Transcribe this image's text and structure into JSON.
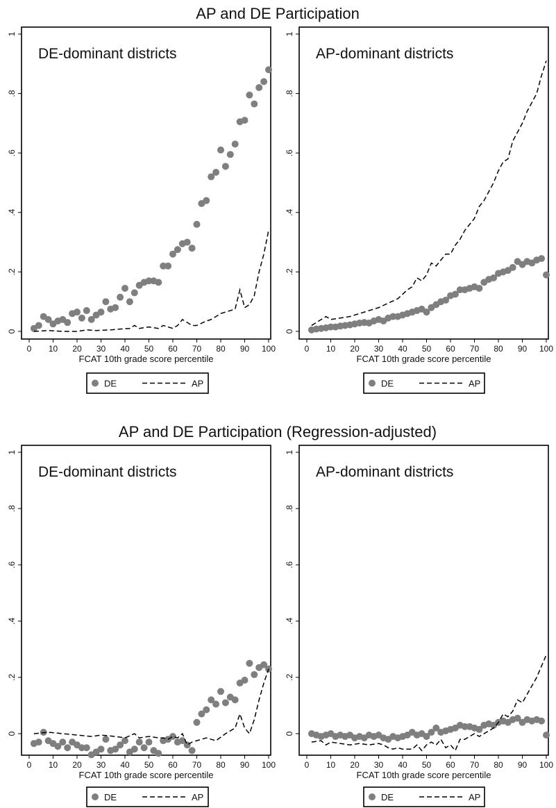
{
  "figure": {
    "sections": [
      {
        "title": "AP and DE Participation",
        "legend": {
          "items": [
            {
              "label": "DE",
              "marker": "dot"
            },
            {
              "label": "AP",
              "marker": "dash"
            }
          ]
        }
      },
      {
        "title": "AP and DE Participation (Regression-adjusted)",
        "legend": {
          "items": [
            {
              "label": "DE",
              "marker": "dot"
            },
            {
              "label": "AP",
              "marker": "dash"
            }
          ]
        }
      }
    ]
  },
  "colors": {
    "de_marker": "#7f7f7f",
    "ap_line": "#000000",
    "frame": "#000000"
  },
  "chart_data": [
    {
      "type": "scatter",
      "title": "DE-dominant districts",
      "xlabel": "FCAT 10th grade score percentile",
      "ylabel": "",
      "xlim": [
        0,
        100
      ],
      "ylim": [
        0,
        1
      ],
      "xticks": [
        "0",
        "10",
        "20",
        "30",
        "40",
        "50",
        "60",
        "70",
        "80",
        "90",
        "100"
      ],
      "yticks": [
        "0",
        ".2",
        ".4",
        ".6",
        ".8",
        "1"
      ],
      "series": [
        {
          "name": "DE",
          "style": "dot",
          "x": [
            2,
            4,
            6,
            8,
            10,
            12,
            14,
            16,
            18,
            20,
            22,
            24,
            26,
            28,
            30,
            32,
            34,
            36,
            38,
            40,
            42,
            44,
            46,
            48,
            50,
            52,
            54,
            56,
            58,
            60,
            62,
            64,
            66,
            68,
            70,
            72,
            74,
            76,
            78,
            80,
            82,
            84,
            86,
            88,
            90,
            92,
            94,
            96,
            98,
            100
          ],
          "y": [
            0.01,
            0.02,
            0.05,
            0.04,
            0.025,
            0.035,
            0.04,
            0.03,
            0.06,
            0.065,
            0.045,
            0.07,
            0.04,
            0.055,
            0.065,
            0.1,
            0.075,
            0.08,
            0.115,
            0.145,
            0.1,
            0.13,
            0.155,
            0.165,
            0.17,
            0.17,
            0.165,
            0.22,
            0.22,
            0.26,
            0.275,
            0.295,
            0.3,
            0.28,
            0.36,
            0.43,
            0.44,
            0.52,
            0.535,
            0.61,
            0.555,
            0.595,
            0.63,
            0.705,
            0.71,
            0.795,
            0.765,
            0.82,
            0.84,
            0.88
          ]
        },
        {
          "name": "AP",
          "style": "dash",
          "x": [
            2,
            8,
            14,
            20,
            24,
            28,
            34,
            38,
            42,
            44,
            46,
            50,
            54,
            56,
            58,
            60,
            62,
            64,
            66,
            68,
            70,
            74,
            76,
            78,
            80,
            84,
            86,
            88,
            90,
            92,
            94,
            96,
            98,
            100
          ],
          "y": [
            0.0,
            0.003,
            0.0,
            0.0,
            0.005,
            0.003,
            0.005,
            0.008,
            0.01,
            0.02,
            0.01,
            0.015,
            0.01,
            0.02,
            0.015,
            0.01,
            0.02,
            0.04,
            0.03,
            0.02,
            0.02,
            0.035,
            0.04,
            0.05,
            0.06,
            0.07,
            0.075,
            0.14,
            0.08,
            0.09,
            0.12,
            0.2,
            0.26,
            0.34
          ]
        }
      ]
    },
    {
      "type": "scatter",
      "title": "AP-dominant districts",
      "xlabel": "FCAT 10th grade score percentile",
      "ylabel": "",
      "xlim": [
        0,
        100
      ],
      "ylim": [
        0,
        1
      ],
      "xticks": [
        "0",
        "10",
        "20",
        "30",
        "40",
        "50",
        "60",
        "70",
        "80",
        "90",
        "100"
      ],
      "yticks": [
        "0",
        ".2",
        ".4",
        ".6",
        ".8",
        "1"
      ],
      "series": [
        {
          "name": "DE",
          "style": "dot",
          "x": [
            2,
            4,
            6,
            8,
            10,
            12,
            14,
            16,
            18,
            20,
            22,
            24,
            26,
            28,
            30,
            32,
            34,
            36,
            38,
            40,
            42,
            44,
            46,
            48,
            50,
            52,
            54,
            56,
            58,
            60,
            62,
            64,
            66,
            68,
            70,
            72,
            74,
            76,
            78,
            80,
            82,
            84,
            86,
            88,
            90,
            92,
            94,
            96,
            98,
            100
          ],
          "y": [
            0.005,
            0.008,
            0.01,
            0.012,
            0.015,
            0.015,
            0.018,
            0.02,
            0.022,
            0.025,
            0.028,
            0.03,
            0.028,
            0.035,
            0.04,
            0.035,
            0.045,
            0.05,
            0.05,
            0.055,
            0.06,
            0.065,
            0.07,
            0.075,
            0.065,
            0.08,
            0.09,
            0.1,
            0.105,
            0.12,
            0.125,
            0.14,
            0.14,
            0.145,
            0.15,
            0.145,
            0.165,
            0.175,
            0.18,
            0.195,
            0.2,
            0.205,
            0.215,
            0.235,
            0.225,
            0.235,
            0.23,
            0.24,
            0.245,
            0.19
          ]
        },
        {
          "name": "AP",
          "style": "dash",
          "x": [
            2,
            6,
            8,
            10,
            14,
            18,
            22,
            26,
            30,
            34,
            38,
            42,
            44,
            46,
            48,
            50,
            52,
            54,
            56,
            58,
            60,
            62,
            64,
            66,
            68,
            70,
            72,
            74,
            76,
            78,
            80,
            82,
            84,
            86,
            88,
            90,
            92,
            94,
            96,
            98,
            100
          ],
          "y": [
            0.02,
            0.04,
            0.05,
            0.04,
            0.045,
            0.05,
            0.06,
            0.07,
            0.08,
            0.095,
            0.11,
            0.14,
            0.15,
            0.18,
            0.17,
            0.19,
            0.23,
            0.22,
            0.24,
            0.26,
            0.26,
            0.29,
            0.31,
            0.34,
            0.36,
            0.38,
            0.42,
            0.44,
            0.47,
            0.5,
            0.54,
            0.57,
            0.58,
            0.64,
            0.67,
            0.7,
            0.74,
            0.77,
            0.8,
            0.86,
            0.91
          ]
        }
      ]
    },
    {
      "type": "scatter",
      "title": "DE-dominant districts",
      "xlabel": "FCAT 10th grade score percentile",
      "ylabel": "",
      "xlim": [
        0,
        100
      ],
      "ylim": [
        -0.1,
        1
      ],
      "xticks": [
        "0",
        "10",
        "20",
        "30",
        "40",
        "50",
        "60",
        "70",
        "80",
        "90",
        "100"
      ],
      "yticks": [
        "0",
        ".2",
        ".4",
        ".6",
        ".8",
        "1"
      ],
      "series": [
        {
          "name": "DE",
          "style": "dot",
          "x": [
            2,
            4,
            6,
            8,
            10,
            12,
            14,
            16,
            18,
            20,
            22,
            24,
            26,
            28,
            30,
            32,
            34,
            36,
            38,
            40,
            42,
            44,
            46,
            48,
            50,
            52,
            54,
            56,
            58,
            60,
            62,
            64,
            66,
            68,
            70,
            72,
            74,
            76,
            78,
            80,
            82,
            84,
            86,
            88,
            90,
            92,
            94,
            96,
            98,
            100
          ],
          "y": [
            -0.035,
            -0.03,
            0.005,
            -0.025,
            -0.035,
            -0.045,
            -0.03,
            -0.05,
            -0.03,
            -0.04,
            -0.05,
            -0.05,
            -0.075,
            -0.065,
            -0.055,
            -0.02,
            -0.06,
            -0.055,
            -0.04,
            -0.025,
            -0.065,
            -0.055,
            -0.03,
            -0.05,
            -0.03,
            -0.06,
            -0.07,
            -0.025,
            -0.02,
            -0.01,
            -0.03,
            -0.025,
            -0.04,
            -0.06,
            0.04,
            0.07,
            0.085,
            0.12,
            0.105,
            0.15,
            0.11,
            0.13,
            0.12,
            0.18,
            0.19,
            0.25,
            0.21,
            0.235,
            0.245,
            0.23
          ]
        },
        {
          "name": "AP",
          "style": "dash",
          "x": [
            2,
            8,
            14,
            20,
            26,
            30,
            36,
            40,
            44,
            46,
            50,
            54,
            56,
            58,
            60,
            62,
            64,
            66,
            68,
            70,
            74,
            78,
            82,
            86,
            88,
            90,
            92,
            94,
            96,
            98,
            100
          ],
          "y": [
            0.0,
            0.005,
            0.0,
            -0.005,
            -0.01,
            -0.005,
            -0.01,
            -0.015,
            0.0,
            -0.015,
            -0.01,
            -0.015,
            -0.015,
            -0.02,
            -0.01,
            -0.015,
            0.0,
            -0.04,
            -0.03,
            -0.025,
            -0.015,
            -0.025,
            0.0,
            0.02,
            0.07,
            0.02,
            0.0,
            0.05,
            0.12,
            0.18,
            0.23
          ]
        }
      ]
    },
    {
      "type": "scatter",
      "title": "AP-dominant districts",
      "xlabel": "FCAT 10th grade score percentile",
      "ylabel": "",
      "xlim": [
        0,
        100
      ],
      "ylim": [
        -0.1,
        1
      ],
      "xticks": [
        "0",
        "10",
        "20",
        "30",
        "40",
        "50",
        "60",
        "70",
        "80",
        "90",
        "100"
      ],
      "yticks": [
        "0",
        ".2",
        ".4",
        ".6",
        ".8",
        "1"
      ],
      "series": [
        {
          "name": "DE",
          "style": "dot",
          "x": [
            2,
            4,
            6,
            8,
            10,
            12,
            14,
            16,
            18,
            20,
            22,
            24,
            26,
            28,
            30,
            32,
            34,
            36,
            38,
            40,
            42,
            44,
            46,
            48,
            50,
            52,
            54,
            56,
            58,
            60,
            62,
            64,
            66,
            68,
            70,
            72,
            74,
            76,
            78,
            80,
            82,
            84,
            86,
            88,
            90,
            92,
            94,
            96,
            98,
            100
          ],
          "y": [
            0.0,
            -0.005,
            -0.01,
            -0.005,
            0.0,
            -0.01,
            -0.005,
            -0.01,
            -0.005,
            -0.015,
            -0.01,
            -0.015,
            -0.005,
            -0.01,
            -0.005,
            -0.015,
            -0.02,
            -0.01,
            -0.015,
            -0.01,
            -0.005,
            0.005,
            -0.005,
            0.0,
            -0.01,
            0.005,
            0.02,
            0.005,
            0.01,
            0.015,
            0.02,
            0.03,
            0.025,
            0.025,
            0.02,
            0.015,
            0.03,
            0.035,
            0.03,
            0.04,
            0.045,
            0.04,
            0.05,
            0.055,
            0.04,
            0.05,
            0.045,
            0.05,
            0.045,
            -0.005
          ]
        },
        {
          "name": "AP",
          "style": "dash",
          "x": [
            2,
            6,
            8,
            10,
            14,
            18,
            22,
            26,
            30,
            32,
            34,
            36,
            38,
            40,
            44,
            46,
            48,
            50,
            52,
            54,
            56,
            58,
            60,
            62,
            64,
            66,
            68,
            70,
            72,
            74,
            76,
            78,
            80,
            82,
            84,
            86,
            88,
            90,
            92,
            94,
            96,
            98,
            100
          ],
          "y": [
            -0.03,
            -0.025,
            -0.04,
            -0.03,
            -0.035,
            -0.04,
            -0.035,
            -0.04,
            -0.035,
            -0.04,
            -0.05,
            -0.055,
            -0.05,
            -0.055,
            -0.055,
            -0.04,
            -0.06,
            -0.04,
            -0.03,
            -0.04,
            -0.02,
            -0.05,
            -0.04,
            -0.06,
            -0.02,
            -0.02,
            -0.01,
            0.0,
            -0.01,
            0.0,
            0.01,
            0.02,
            0.04,
            0.07,
            0.06,
            0.08,
            0.12,
            0.11,
            0.14,
            0.17,
            0.2,
            0.24,
            0.28
          ]
        }
      ]
    }
  ]
}
